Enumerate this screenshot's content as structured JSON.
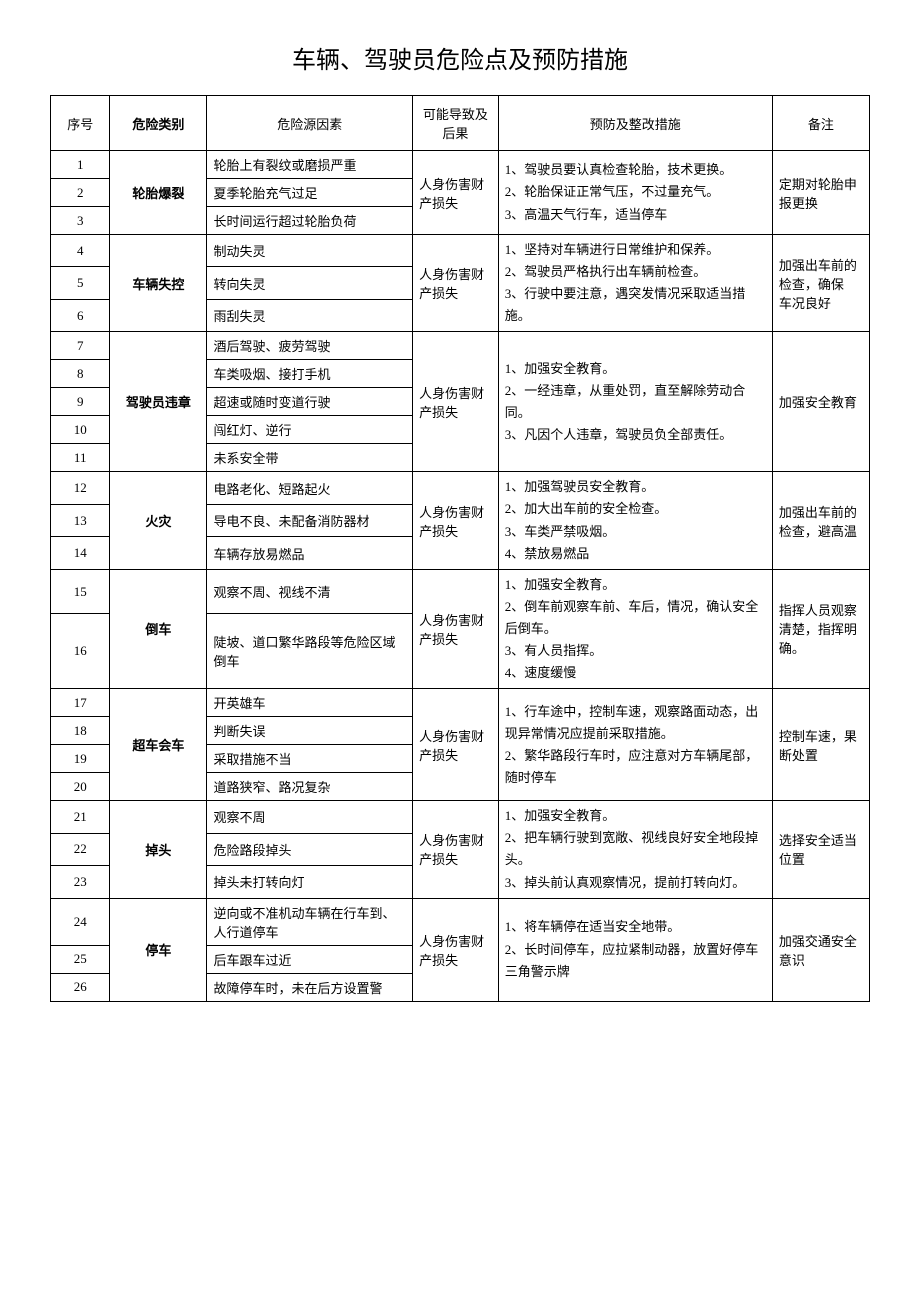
{
  "title": "车辆、驾驶员危险点及预防措施",
  "headers": {
    "num": "序号",
    "category": "危险类别",
    "source": "危险源因素",
    "result": "可能导致及后果",
    "prevention": "预防及整改措施",
    "note": "备注"
  },
  "groups": [
    {
      "category": "轮胎爆裂",
      "result": "人身伤害财产损失",
      "prevention": "1、驾驶员要认真检查轮胎，技术更换。\n2、轮胎保证正常气压，不过量充气。\n3、高温天气行车，适当停车",
      "note": "定期对轮胎申报更换",
      "rows": [
        {
          "num": "1",
          "source": "轮胎上有裂纹或磨损严重"
        },
        {
          "num": "2",
          "source": "夏季轮胎充气过足"
        },
        {
          "num": "3",
          "source": "长时间运行超过轮胎负荷"
        }
      ]
    },
    {
      "category": "车辆失控",
      "result": "人身伤害财产损失",
      "prevention": "1、坚持对车辆进行日常维护和保养。\n2、驾驶员严格执行出车辆前检查。\n3、行驶中要注意，遇突发情况采取适当措施。",
      "note": "加强出车前的检查，确保\n车况良好",
      "rows": [
        {
          "num": "4",
          "source": "制动失灵"
        },
        {
          "num": "5",
          "source": "转向失灵"
        },
        {
          "num": "6",
          "source": "雨刮失灵"
        }
      ]
    },
    {
      "category": "驾驶员违章",
      "result": "人身伤害财产损失",
      "prevention": "1、加强安全教育。\n2、一经违章，从重处罚，直至解除劳动合同。\n3、凡因个人违章，驾驶员负全部责任。",
      "note": "加强安全教育",
      "rows": [
        {
          "num": "7",
          "source": "酒后驾驶、疲劳驾驶"
        },
        {
          "num": "8",
          "source": "车类吸烟、接打手机"
        },
        {
          "num": "9",
          "source": "超速或随时变道行驶"
        },
        {
          "num": "10",
          "source": "闯红灯、逆行"
        },
        {
          "num": "11",
          "source": "未系安全带"
        }
      ]
    },
    {
      "category": "火灾",
      "result": "人身伤害财产损失",
      "prevention": "1、加强驾驶员安全教育。\n2、加大出车前的安全检查。\n3、车类严禁吸烟。\n4、禁放易燃品",
      "note": "加强出车前的检查，避高温",
      "rows": [
        {
          "num": "12",
          "source": "电路老化、短路起火"
        },
        {
          "num": "13",
          "source": "导电不良、未配备消防器材"
        },
        {
          "num": "14",
          "source": "车辆存放易燃品"
        }
      ]
    },
    {
      "category": "倒车",
      "result": "人身伤害财产损失",
      "prevention": "1、加强安全教育。\n2、倒车前观察车前、车后，情况，确认安全后倒车。\n3、有人员指挥。\n4、速度缓慢",
      "note": "指挥人员观察清楚，指挥明确。",
      "rows": [
        {
          "num": "15",
          "source": "观察不周、视线不清"
        },
        {
          "num": "16",
          "source": "陡坡、道口繁华路段等危险区域倒车"
        }
      ]
    },
    {
      "category": "超车会车",
      "result": "人身伤害财产损失",
      "prevention": "1、行车途中，控制车速，观察路面动态，出现异常情况应提前采取措施。\n2、繁华路段行车时，应注意对方车辆尾部，随时停车",
      "note": "控制车速，果断处置",
      "rows": [
        {
          "num": "17",
          "source": "开英雄车"
        },
        {
          "num": "18",
          "source": "判断失误"
        },
        {
          "num": "19",
          "source": "采取措施不当"
        },
        {
          "num": "20",
          "source": "道路狭窄、路况复杂"
        }
      ]
    },
    {
      "category": "掉头",
      "result": "人身伤害财产损失",
      "prevention": "1、加强安全教育。\n2、把车辆行驶到宽敞、视线良好安全地段掉头。\n3、掉头前认真观察情况，提前打转向灯。",
      "note": "选择安全适当位置",
      "rows": [
        {
          "num": "21",
          "source": "观察不周"
        },
        {
          "num": "22",
          "source": "危险路段掉头"
        },
        {
          "num": "23",
          "source": "掉头未打转向灯"
        }
      ]
    },
    {
      "category": "停车",
      "result": "人身伤害财产损失",
      "prevention": "1、将车辆停在适当安全地带。\n2、长时间停车，应拉紧制动器，放置好停车三角警示牌",
      "note": "加强交通安全意识",
      "rows": [
        {
          "num": "24",
          "source": "逆向或不准机动车辆在行车到、人行道停车"
        },
        {
          "num": "25",
          "source": "后车跟车过近"
        },
        {
          "num": "26",
          "source": "故障停车时，未在后方设置警"
        }
      ]
    }
  ]
}
